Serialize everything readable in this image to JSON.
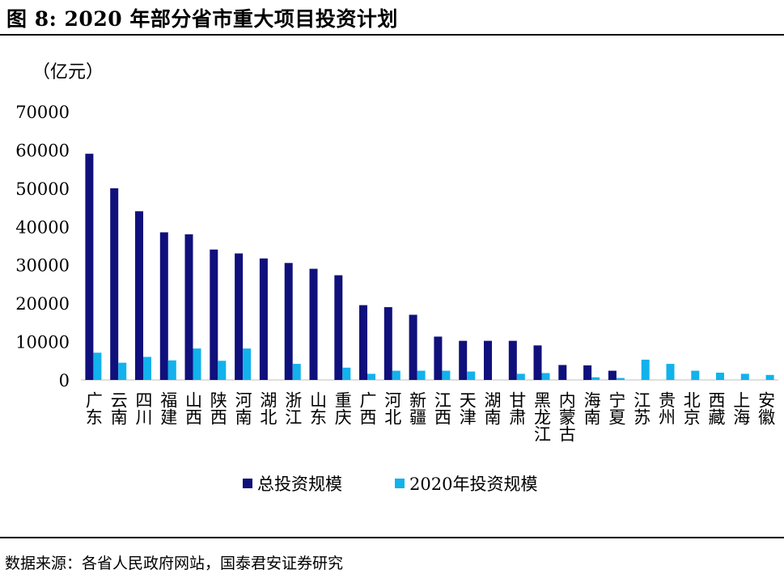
{
  "title": "图 8:  2020 年部分省市重大项目投资计划",
  "source": "数据来源：各省人民政府网站，国泰君安证券研究",
  "colors": {
    "total": "#10107c",
    "y2020": "#12b2ec"
  },
  "chart_data": {
    "type": "bar",
    "unit_label": "（亿元）",
    "ylim": [
      0,
      70000
    ],
    "yticks": [
      0,
      10000,
      20000,
      30000,
      40000,
      50000,
      60000,
      70000
    ],
    "legend_position": "bottom",
    "grid": false,
    "categories": [
      "广东",
      "云南",
      "四川",
      "福建",
      "山西",
      "陕西",
      "河南",
      "湖北",
      "浙江",
      "山东",
      "重庆",
      "广西",
      "河北",
      "新疆",
      "江西",
      "天津",
      "湖南",
      "甘肃",
      "黑龙江",
      "内蒙古",
      "海南",
      "宁夏",
      "江苏",
      "贵州",
      "北京",
      "西藏",
      "上海",
      "安徽"
    ],
    "series": [
      {
        "name": "总投资规模",
        "color": "#10107c",
        "values": [
          59000,
          50000,
          44000,
          38500,
          38000,
          34000,
          33000,
          31700,
          30500,
          29000,
          27300,
          19500,
          19000,
          17000,
          11300,
          10200,
          10200,
          10200,
          9000,
          3900,
          3800,
          2400,
          null,
          null,
          null,
          null,
          null,
          null
        ]
      },
      {
        "name": "2020年投资规模",
        "color": "#12b2ec",
        "values": [
          7100,
          4500,
          6000,
          5100,
          8200,
          5000,
          8200,
          null,
          4200,
          null,
          3200,
          1600,
          2400,
          2400,
          2400,
          2200,
          null,
          1600,
          1800,
          null,
          700,
          500,
          5300,
          4200,
          2400,
          1900,
          1600,
          1300
        ]
      }
    ]
  }
}
